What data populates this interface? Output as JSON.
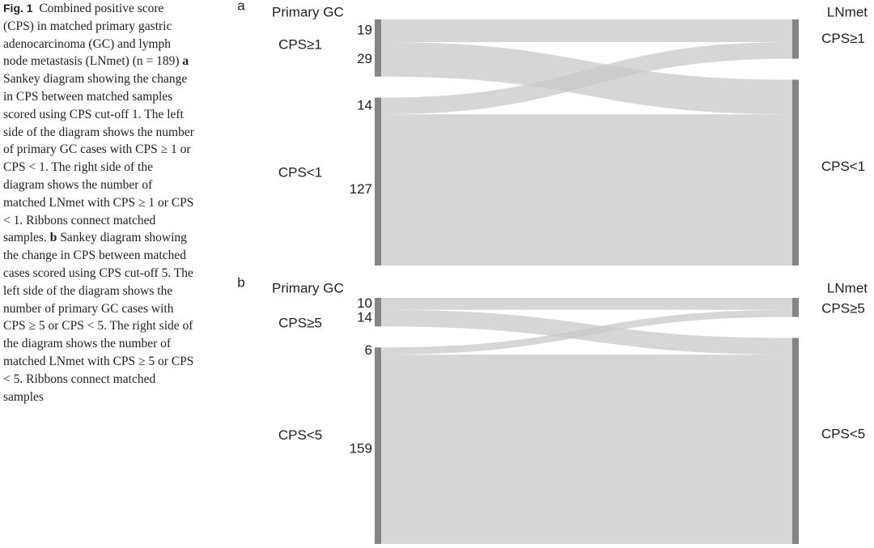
{
  "caption": {
    "label": "Fig. 1",
    "intro": "Combined positive score (CPS) in matched primary gastric adenocarcinoma (GC) and lymph node metastasis (LNmet) (n = 189)",
    "panels": [
      {
        "letter": "a",
        "text": "Sankey diagram showing the change in CPS between matched samples scored using CPS cut-off 1. The left side of the diagram shows the number of primary GC cases with CPS ≥ 1 or CPS < 1. The right side of the diagram shows the number of matched LNmet with CPS ≥ 1 or CPS < 1. Ribbons connect matched samples."
      },
      {
        "letter": "b",
        "text": "Sankey diagram showing the change in CPS between matched cases scored using CPS cut-off 5. The left side of the diagram shows the number of primary GC cases with CPS ≥ 5 or CPS < 5. The right side of the diagram shows the number of matched LNmet with CPS ≥ 5 or CPS < 5. Ribbons connect matched samples"
      }
    ]
  },
  "chart_data": [
    {
      "type": "sankey",
      "label": "a",
      "left_title": "Primary GC",
      "right_title": "LNmet",
      "left_nodes": [
        "CPS≥1",
        "CPS<1"
      ],
      "right_nodes": [
        "CPS≥1",
        "CPS<1"
      ],
      "values": [
        [
          19,
          29
        ],
        [
          14,
          127
        ]
      ],
      "ribbon_color": "#c8c8c8",
      "node_color": "#858585"
    },
    {
      "type": "sankey",
      "label": "b",
      "left_title": "Primary GC",
      "right_title": "LNmet",
      "left_nodes": [
        "CPS≥5",
        "CPS<5"
      ],
      "right_nodes": [
        "CPS≥5",
        "CPS<5"
      ],
      "values": [
        [
          10,
          14
        ],
        [
          6,
          159
        ]
      ],
      "ribbon_color": "#c8c8c8",
      "node_color": "#858585"
    }
  ]
}
